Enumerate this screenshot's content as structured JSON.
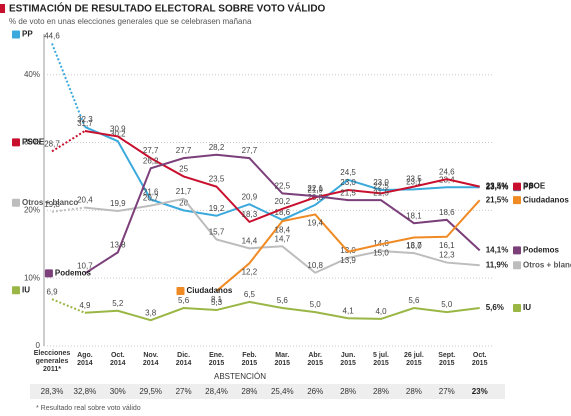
{
  "chart_data": {
    "type": "line",
    "title": "ESTIMACIÓN DE RESULTADO ELECTORAL SOBRE VOTO VÁLIDO",
    "subtitle": "% de voto en unas elecciones generales que se celebrasen mañana",
    "categories": [
      "Elecciones\ngenerales\n2011*",
      "Ago.\n2014",
      "Oct.\n2014",
      "Nov.\n2014",
      "Dic.\n2014",
      "Ene.\n2015",
      "Feb.\n2015",
      "Mar.\n2015",
      "Abr.\n2015",
      "Jun.\n2015",
      "5 jul.\n2015",
      "26 jul.\n2015",
      "Sept.\n2015",
      "Oct.\n2015"
    ],
    "ylim": [
      0,
      46
    ],
    "yticks": [
      0,
      {
        "value": 10,
        "label": "10%"
      },
      {
        "value": 20,
        "label": "20%"
      },
      {
        "value": 30,
        "label": "30%"
      },
      {
        "value": 40,
        "label": "40%"
      }
    ],
    "grid": true,
    "series": [
      {
        "name": "PP",
        "color": "#3aa9dc",
        "values": [
          44.6,
          32.3,
          30.2,
          21.6,
          20,
          19.2,
          20.9,
          18.6,
          20.8,
          24.5,
          23.0,
          23.1,
          23.4,
          23.4
        ],
        "value_labels": [
          "44,6",
          "32,3",
          "30,2",
          "21,6",
          "20",
          "19,2",
          "20,9",
          "18,6",
          "20,8",
          "24,5",
          "23,0",
          "23,1",
          "23,4",
          "23,4%"
        ]
      },
      {
        "name": "PSOE",
        "color": "#c8102e",
        "values": [
          28.7,
          31.7,
          30.9,
          27.7,
          25,
          23.5,
          18.3,
          20.2,
          21.9,
          23.0,
          22.5,
          23.5,
          24.6,
          23.5
        ],
        "value_labels": [
          "28,7",
          "31,7",
          "30,9",
          "27,7",
          "25",
          "23,5",
          "18,3",
          "20,2",
          "21,9",
          "23,0",
          "22,5",
          "23,5",
          "24,6",
          "23,5%"
        ]
      },
      {
        "name": "Otros + blanco",
        "color": "#bdbdbd",
        "values": [
          19.8,
          20.4,
          19.9,
          20.7,
          21.7,
          15.7,
          14.4,
          14.7,
          10.8,
          13.0,
          14.0,
          13.7,
          12.3,
          11.9
        ],
        "value_labels": [
          "19,8",
          "20,4",
          "19,9",
          "20,7",
          "21,7",
          "15,7",
          "14,4",
          "14,7",
          "10,8",
          "13,0",
          "14,0",
          "13,7",
          "12,3",
          "11,9%"
        ]
      },
      {
        "name": "Podemos",
        "color": "#7b3f7a",
        "values": [
          null,
          10.7,
          13.8,
          26.2,
          27.7,
          28.2,
          27.7,
          22.5,
          22.1,
          21.5,
          21.5,
          18.1,
          18.6,
          14.1
        ],
        "value_labels": [
          null,
          "10,7",
          "13,8",
          "26,2",
          "27,7",
          "28,2",
          "27,7",
          "22,5",
          "22,1",
          "21,5",
          "21,5",
          "18,1",
          "18,6",
          "14,1%"
        ]
      },
      {
        "name": "Ciudadanos",
        "color": "#f08a24",
        "values": [
          null,
          null,
          null,
          null,
          null,
          8.1,
          12.2,
          18.4,
          19.4,
          13.9,
          15.0,
          16.0,
          16.1,
          21.5
        ],
        "value_labels": [
          null,
          null,
          null,
          null,
          null,
          "8,1",
          "12,2",
          "18,4",
          "19,4",
          "13,9",
          "15,0",
          "16,0",
          "16,1",
          "21,5%"
        ]
      },
      {
        "name": "IU",
        "color": "#9ab645",
        "values": [
          6.9,
          4.9,
          5.2,
          3.8,
          5.6,
          5.3,
          6.5,
          5.6,
          5.0,
          4.1,
          4.0,
          5.6,
          5.0,
          5.6
        ],
        "value_labels": [
          "6,9",
          "4,9",
          "5,2",
          "3,8",
          "5,6",
          "5,3",
          "6,5",
          "5,6",
          "5,0",
          "4,1",
          "4,0",
          "5,6",
          "5,0",
          "5,6%"
        ]
      }
    ],
    "abstention": {
      "label": "ABSTENCIÓN",
      "values": [
        28.3,
        32.8,
        30,
        29.5,
        27,
        28.4,
        28,
        25.4,
        26,
        28,
        28,
        28,
        27,
        23
      ],
      "value_labels": [
        "28,3%",
        "32,8%",
        "30%",
        "29,5%",
        "27%",
        "28,4%",
        "28%",
        "25,4%",
        "26%",
        "28%",
        "28%",
        "28%",
        "27%",
        "23%"
      ]
    },
    "footnote": "* Resultado real sobre voto válido"
  }
}
